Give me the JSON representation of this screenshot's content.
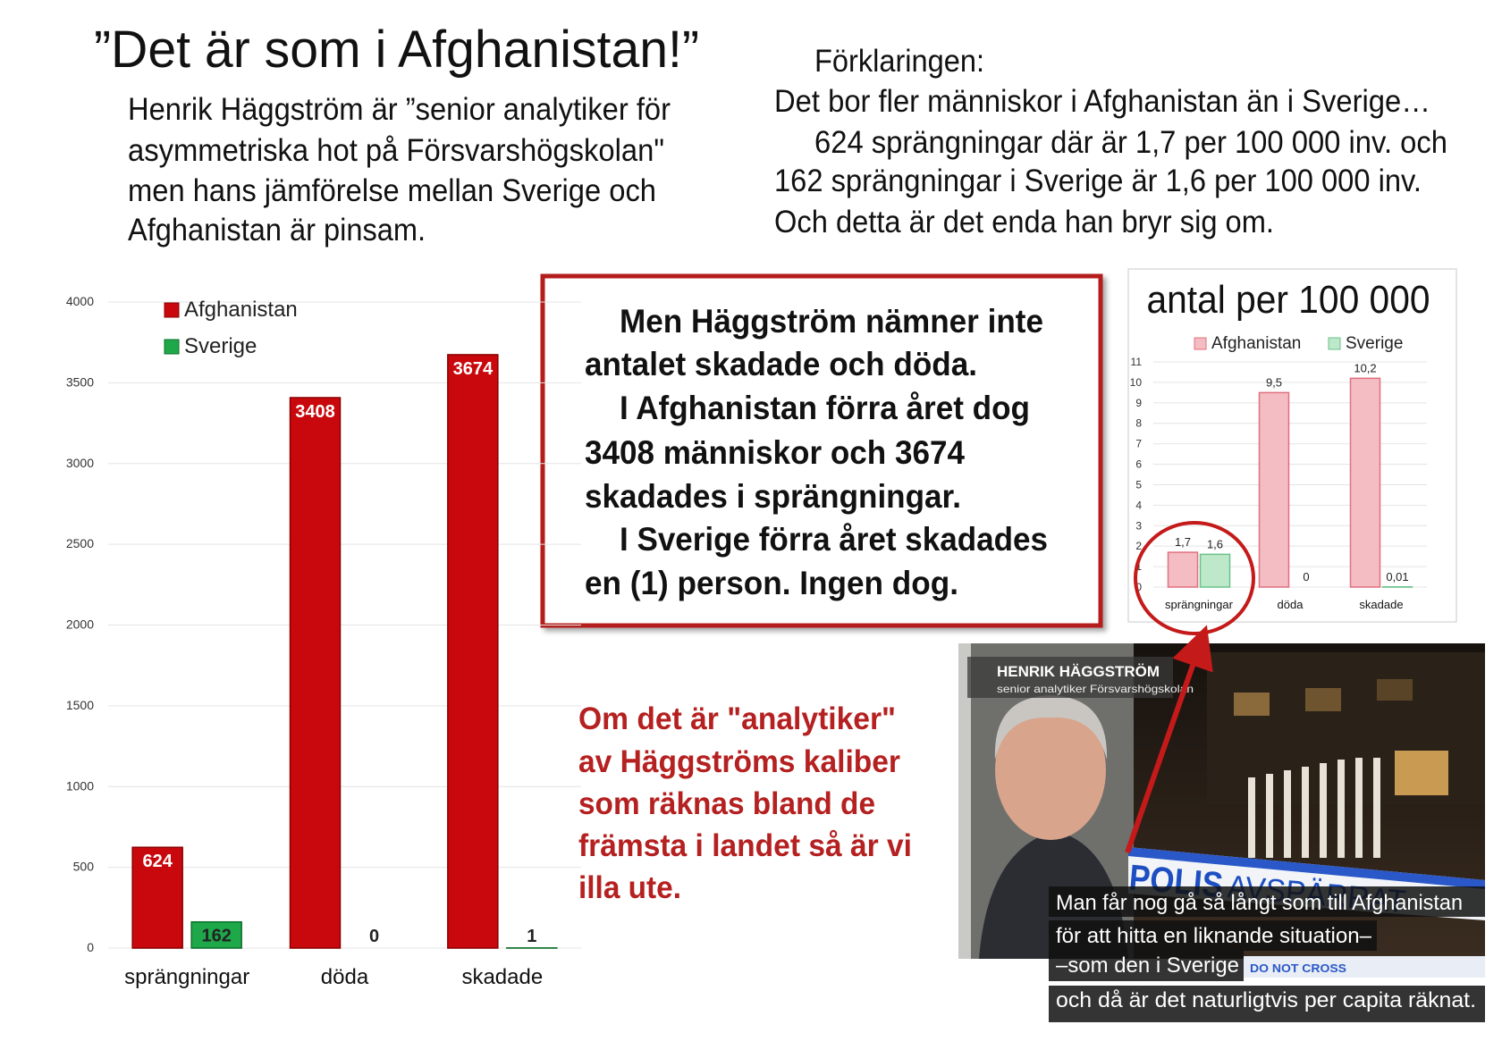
{
  "title": "”Det är som i Afghanistan!”",
  "intro": [
    "Henrik Häggström är ”senior analytiker för",
    "asymmetriska hot på Försvarshögskolan\"",
    "men hans jämförelse mellan Sverige och",
    "Afghanistan är pinsam."
  ],
  "explanation": [
    "Förklaringen:",
    "Det bor fler människor i Afghanistan än i Sverige…",
    "624 sprängningar där är 1,7 per 100 000 inv. och",
    "162 sprängningar i Sverige är 1,6 per 100 000 inv.",
    "Och detta är det enda han bryr sig om."
  ],
  "callout": [
    "Men Häggström nämner inte",
    "antalet skadade och döda.",
    "I Afghanistan förra året dog",
    "3408 människor och 3674",
    "skadades i sprängningar.",
    "I Sverige förra året skadades",
    "en (1) person. Ingen dog."
  ],
  "conclusion": [
    "Om det är \"analytiker\"",
    "av Häggströms kaliber",
    "som räknas bland de",
    "främsta i landet så är vi",
    "illa ute."
  ],
  "tv": {
    "name": "HENRIK HÄGGSTRÖM",
    "role": "senior analytiker Försvarshögskolan",
    "tape_bold": "POLIS",
    "tape_rest": "AVSPÄRRAT",
    "tape_small": "DO NOT CROSS",
    "subtitles": [
      "Man får nog gå så långt som till Afghanistan",
      "för att hitta en liknande situation–",
      "–som den i Sverige",
      "och då är det naturligtvis per capita räknat."
    ]
  },
  "chart_data": [
    {
      "type": "bar",
      "categories": [
        "sprängningar",
        "döda",
        "skadade"
      ],
      "series": [
        {
          "name": "Afghanistan",
          "color": "#c8080c",
          "edgecolor": "#8a0000",
          "values": [
            624,
            3408,
            3674
          ]
        },
        {
          "name": "Sverige",
          "color": "#1fa84a",
          "edgecolor": "#0c6e2a",
          "values": [
            162,
            0,
            1
          ]
        }
      ],
      "ylim": [
        0,
        4000
      ],
      "yticks": [
        0,
        500,
        1000,
        1500,
        2000,
        2500,
        3000,
        3500,
        4000
      ],
      "grid": true,
      "legend": "upper left"
    },
    {
      "type": "bar",
      "title": "antal per 100 000",
      "categories": [
        "sprängningar",
        "döda",
        "skadade"
      ],
      "series": [
        {
          "name": "Afghanistan",
          "color": "#f4bcc3",
          "edgecolor": "#e0707e",
          "values": [
            1.7,
            9.5,
            10.2
          ],
          "value_labels": [
            "1,7",
            "9,5",
            "10,2"
          ]
        },
        {
          "name": "Sverige",
          "color": "#bde8c9",
          "edgecolor": "#6cc28a",
          "values": [
            1.6,
            0,
            0.01
          ],
          "value_labels": [
            "1,6",
            "0",
            "0,01"
          ]
        }
      ],
      "ylim": [
        0,
        11
      ],
      "yticks": [
        0,
        1,
        2,
        3,
        4,
        5,
        6,
        7,
        8,
        9,
        10,
        11
      ],
      "grid": true,
      "legend": "upper center"
    }
  ]
}
